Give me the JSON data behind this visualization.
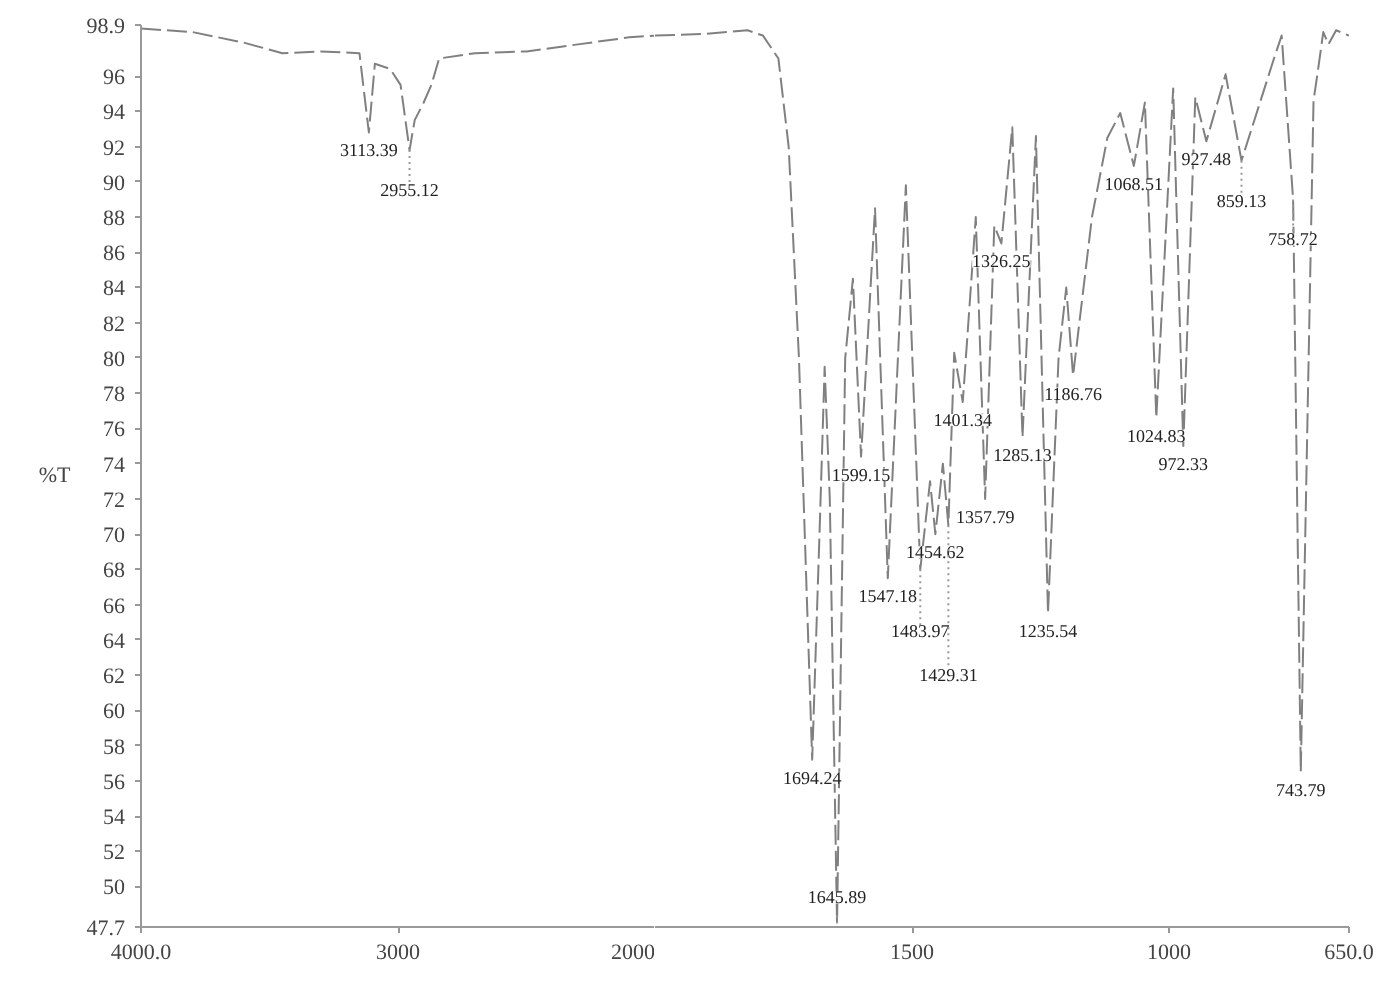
{
  "chart_data": [
    {
      "type": "line",
      "ylabel": "%T",
      "xlim": [
        4000,
        2000
      ],
      "ylim": [
        47.7,
        98.9
      ],
      "xticks": [
        {
          "value": 4000,
          "label": "4000.0"
        },
        3000,
        2000
      ],
      "yticks": [
        47.7,
        50,
        52,
        54,
        56,
        58,
        60,
        62,
        64,
        66,
        68,
        70,
        72,
        74,
        76,
        78,
        80,
        82,
        84,
        86,
        88,
        90,
        92,
        94,
        96,
        98.9
      ],
      "line_style": "dashed",
      "grid": false,
      "legend": false,
      "series": [
        {
          "color": "#808080",
          "x": [
            4000,
            3800,
            3600,
            3450,
            3300,
            3150,
            3113.39,
            3090,
            3030,
            2990,
            2955.12,
            2935,
            2900,
            2870,
            2840,
            2700,
            2500,
            2300,
            2100,
            2000
          ],
          "values": [
            98.7,
            98.5,
            97.9,
            97.3,
            97.4,
            97.3,
            92.8,
            96.7,
            96.4,
            95.5,
            91.8,
            93.5,
            94.5,
            95.5,
            97.0,
            97.3,
            97.4,
            97.8,
            98.2,
            98.3
          ]
        }
      ],
      "annotations": [
        {
          "text": "3113.39",
          "x": 3113.39,
          "y": 92.8
        },
        {
          "text": "2955.12",
          "x": 2955.12,
          "y": 91.8
        }
      ]
    },
    {
      "type": "line",
      "xlim": [
        2000,
        650
      ],
      "ylim": [
        47.7,
        98.9
      ],
      "tick_labels": "x",
      "xticks": [
        1500,
        1000,
        {
          "value": 650,
          "label": "650.0"
        }
      ],
      "line_style": "dashed",
      "grid": false,
      "legend": false,
      "series": [
        {
          "color": "#808080",
          "x": [
            2000,
            1900,
            1820,
            1790,
            1760,
            1740,
            1720,
            1694.24,
            1680,
            1670,
            1660,
            1645.89,
            1630,
            1615,
            1599.15,
            1572,
            1547.18,
            1512,
            1483.97,
            1465,
            1454.62,
            1440,
            1429.31,
            1418,
            1401.34,
            1376,
            1357.79,
            1340,
            1326.25,
            1305,
            1285.13,
            1259,
            1235.54,
            1215,
            1200,
            1186.76,
            1150,
            1120,
            1095,
            1068.51,
            1047,
            1024.83,
            992,
            972.33,
            949,
            927.48,
            890,
            859.13,
            797,
            781,
            758.72,
            743.79,
            719,
            711,
            700,
            690,
            675,
            650
          ],
          "values": [
            98.3,
            98.4,
            98.6,
            98.3,
            97.0,
            92.0,
            80.0,
            57.2,
            70.0,
            79.5,
            72.0,
            47.9,
            80.0,
            84.5,
            74.4,
            88.5,
            67.5,
            89.8,
            68.0,
            73.0,
            70.0,
            74.0,
            70.5,
            80.3,
            77.5,
            88.0,
            72.0,
            87.5,
            86.5,
            93.1,
            75.5,
            92.6,
            65.5,
            80.0,
            84.0,
            79.0,
            88.0,
            92.5,
            93.9,
            90.9,
            94.5,
            76.6,
            95.3,
            75.0,
            94.8,
            92.3,
            96.1,
            91.2,
            96.9,
            98.3,
            89.0,
            56.5,
            94.6,
            96.2,
            98.5,
            97.8,
            98.6,
            98.3
          ]
        }
      ],
      "annotations": [
        {
          "text": "1694.24",
          "x": 1694.24,
          "y": 57.2
        },
        {
          "text": "1645.89",
          "x": 1645.89,
          "y": 47.9
        },
        {
          "text": "1599.15",
          "x": 1599.15,
          "y": 74.4
        },
        {
          "text": "1547.18",
          "x": 1547.18,
          "y": 67.5
        },
        {
          "text": "1483.97",
          "x": 1483.97,
          "y": 68.0
        },
        {
          "text": "1454.62",
          "x": 1454.62,
          "y": 70.0
        },
        {
          "text": "1429.31",
          "x": 1429.31,
          "y": 70.5
        },
        {
          "text": "1401.34",
          "x": 1401.34,
          "y": 77.5
        },
        {
          "text": "1357.79",
          "x": 1357.79,
          "y": 72.0
        },
        {
          "text": "1326.25",
          "x": 1326.25,
          "y": 86.5
        },
        {
          "text": "1285.13",
          "x": 1285.13,
          "y": 75.5
        },
        {
          "text": "1235.54",
          "x": 1235.54,
          "y": 65.5
        },
        {
          "text": "1186.76",
          "x": 1186.76,
          "y": 79.0
        },
        {
          "text": "1068.51",
          "x": 1068.51,
          "y": 90.9
        },
        {
          "text": "1024.83",
          "x": 1024.83,
          "y": 76.6
        },
        {
          "text": "972.33",
          "x": 972.33,
          "y": 75.0
        },
        {
          "text": "927.48",
          "x": 927.48,
          "y": 92.3
        },
        {
          "text": "859.13",
          "x": 859.13,
          "y": 91.2
        },
        {
          "text": "758.72",
          "x": 758.72,
          "y": 89.0
        },
        {
          "text": "743.79",
          "x": 743.79,
          "y": 56.5
        }
      ]
    }
  ]
}
